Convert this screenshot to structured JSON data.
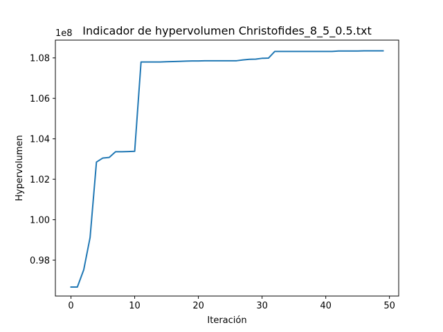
{
  "chart_data": {
    "type": "line",
    "title": "Indicador de hypervolumen Christofides_8_5_0.5.txt",
    "xlabel": "Iteración",
    "ylabel": "Hypervolumen",
    "offset_label": "1e8",
    "xlim": [
      -2.45,
      51.45
    ],
    "ylim": [
      0.96225,
      1.0888
    ],
    "xticks": [
      0,
      10,
      20,
      30,
      40,
      50
    ],
    "xtick_labels": [
      "0",
      "10",
      "20",
      "30",
      "40",
      "50"
    ],
    "yticks": [
      0.98,
      1.0,
      1.02,
      1.04,
      1.06,
      1.08
    ],
    "ytick_labels": [
      "0.98",
      "1.00",
      "1.02",
      "1.04",
      "1.06",
      "1.08"
    ],
    "grid": false,
    "line_color": "#1f77b4",
    "series": [
      {
        "name": "Hypervolumen",
        "x": [
          0,
          1,
          2,
          3,
          4,
          5,
          6,
          7,
          8,
          9,
          10,
          11,
          12,
          13,
          14,
          15,
          16,
          17,
          18,
          19,
          20,
          21,
          22,
          23,
          24,
          25,
          26,
          27,
          28,
          29,
          30,
          31,
          32,
          33,
          34,
          35,
          36,
          37,
          38,
          39,
          40,
          41,
          42,
          43,
          44,
          45,
          46,
          47,
          48,
          49
        ],
        "y": [
          0.9667,
          0.9667,
          0.9752,
          0.9912,
          1.0285,
          1.0305,
          1.0308,
          1.0336,
          1.0336,
          1.0337,
          1.0338,
          1.078,
          1.078,
          1.078,
          1.078,
          1.0781,
          1.0782,
          1.0783,
          1.0784,
          1.0785,
          1.0785,
          1.0786,
          1.0786,
          1.0786,
          1.0786,
          1.0786,
          1.0786,
          1.079,
          1.0793,
          1.0794,
          1.0798,
          1.0799,
          1.0832,
          1.0832,
          1.0832,
          1.0832,
          1.0832,
          1.0832,
          1.0832,
          1.0832,
          1.0832,
          1.0832,
          1.0834,
          1.0834,
          1.0834,
          1.0834,
          1.0835,
          1.0835,
          1.0835,
          1.0835
        ]
      }
    ]
  }
}
